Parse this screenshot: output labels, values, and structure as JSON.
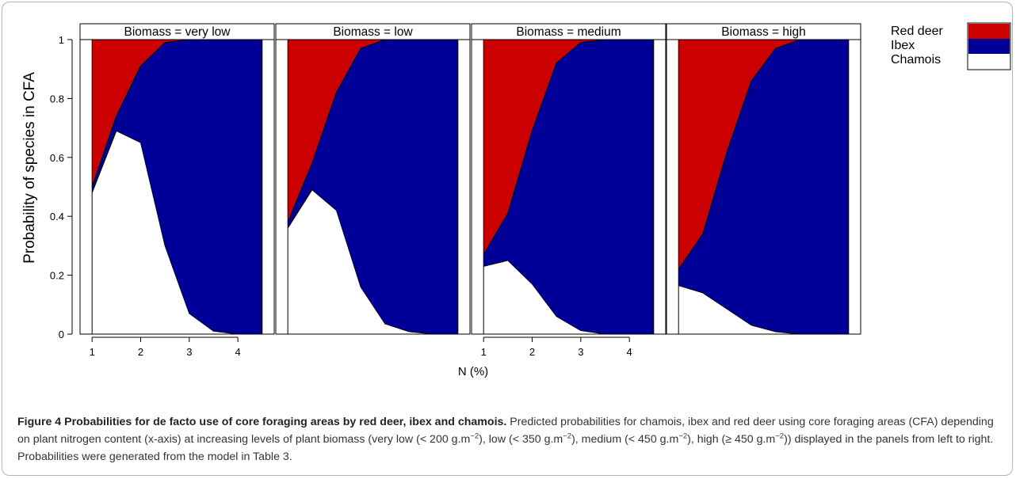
{
  "chart_data": {
    "type": "area",
    "stacked": true,
    "ylabel": "Probability of species in CFA",
    "xlabel": "N (%)",
    "ylim": [
      0,
      1
    ],
    "y_ticks": [
      "0",
      "0.2",
      "0.4",
      "0.6",
      "0.8",
      "1"
    ],
    "y_tick_values": [
      0,
      0.2,
      0.4,
      0.6,
      0.8,
      1
    ],
    "xlim": [
      0.85,
      4.65
    ],
    "x_tick_values": [
      1,
      2,
      3,
      4
    ],
    "x_tick_labels": [
      "1",
      "2",
      "3",
      "4"
    ],
    "legend": {
      "placement": "top-right",
      "entries": [
        {
          "label": "Red deer",
          "color": "#cc0000"
        },
        {
          "label": "Ibex",
          "color": "#000099"
        },
        {
          "label": "Chamois",
          "color": "#ffffff"
        }
      ]
    },
    "panels": [
      {
        "strip": "Biomass = very low",
        "show_x_axis": true,
        "x": [
          1,
          1.5,
          2,
          2.5,
          3,
          3.5,
          4,
          4.5
        ],
        "series": [
          {
            "name": "Chamois",
            "cumulative": [
              0.48,
              0.69,
              0.65,
              0.3,
              0.07,
              0.01,
              0.0,
              0.0
            ]
          },
          {
            "name": "Ibex",
            "cumulative": [
              0.5,
              0.74,
              0.91,
              0.99,
              1.0,
              1.0,
              1.0,
              1.0
            ]
          },
          {
            "name": "Red deer",
            "cumulative": [
              1,
              1,
              1,
              1,
              1,
              1,
              1,
              1
            ]
          }
        ]
      },
      {
        "strip": "Biomass = low",
        "show_x_axis": false,
        "x": [
          1,
          1.5,
          2,
          2.5,
          3,
          3.5,
          4,
          4.5
        ],
        "series": [
          {
            "name": "Chamois",
            "cumulative": [
              0.36,
              0.49,
              0.42,
              0.16,
              0.035,
              0.008,
              0.0,
              0.0
            ]
          },
          {
            "name": "Ibex",
            "cumulative": [
              0.38,
              0.58,
              0.82,
              0.97,
              1.0,
              1.0,
              1.0,
              1.0
            ]
          },
          {
            "name": "Red deer",
            "cumulative": [
              1,
              1,
              1,
              1,
              1,
              1,
              1,
              1
            ]
          }
        ]
      },
      {
        "strip": "Biomass = medium",
        "show_x_axis": true,
        "x": [
          1,
          1.5,
          2,
          2.5,
          3,
          3.5,
          4,
          4.5
        ],
        "series": [
          {
            "name": "Chamois",
            "cumulative": [
              0.23,
              0.25,
              0.17,
              0.06,
              0.012,
              0.0,
              0.0,
              0.0
            ]
          },
          {
            "name": "Ibex",
            "cumulative": [
              0.27,
              0.41,
              0.69,
              0.92,
              0.99,
              1.0,
              1.0,
              1.0
            ]
          },
          {
            "name": "Red deer",
            "cumulative": [
              1,
              1,
              1,
              1,
              1,
              1,
              1,
              1
            ]
          }
        ]
      },
      {
        "strip": "Biomass = high",
        "show_x_axis": false,
        "x": [
          1,
          1.5,
          2,
          2.5,
          3,
          3.5,
          4,
          4.5
        ],
        "series": [
          {
            "name": "Chamois",
            "cumulative": [
              0.165,
              0.14,
              0.085,
              0.03,
              0.008,
              0.0,
              0.0,
              0.0
            ]
          },
          {
            "name": "Ibex",
            "cumulative": [
              0.22,
              0.34,
              0.62,
              0.86,
              0.97,
              1.0,
              1.0,
              1.0
            ]
          },
          {
            "name": "Red deer",
            "cumulative": [
              1,
              1,
              1,
              1,
              1,
              1,
              1,
              1
            ]
          }
        ]
      }
    ]
  },
  "caption": {
    "label": "Figure 4",
    "title": "Probabilities for de facto use of core foraging areas by red deer, ibex and chamois.",
    "body_1": "Predicted probabilities for chamois, ibex and red deer using core foraging areas (CFA) depending on plant nitrogen content (x-axis) at increasing levels of plant biomass (very low (< 200 g.m",
    "sup_1": "−2",
    "body_2": "), low (< 350 g.m",
    "sup_2": "−2",
    "body_3": "), medium (< 450 g.m",
    "sup_3": "−2",
    "body_4": "), high (≥ 450 g.m",
    "sup_4": "−2",
    "body_5": ")) displayed in the panels from left to right. Probabilities were generated from the model in Table 3."
  }
}
